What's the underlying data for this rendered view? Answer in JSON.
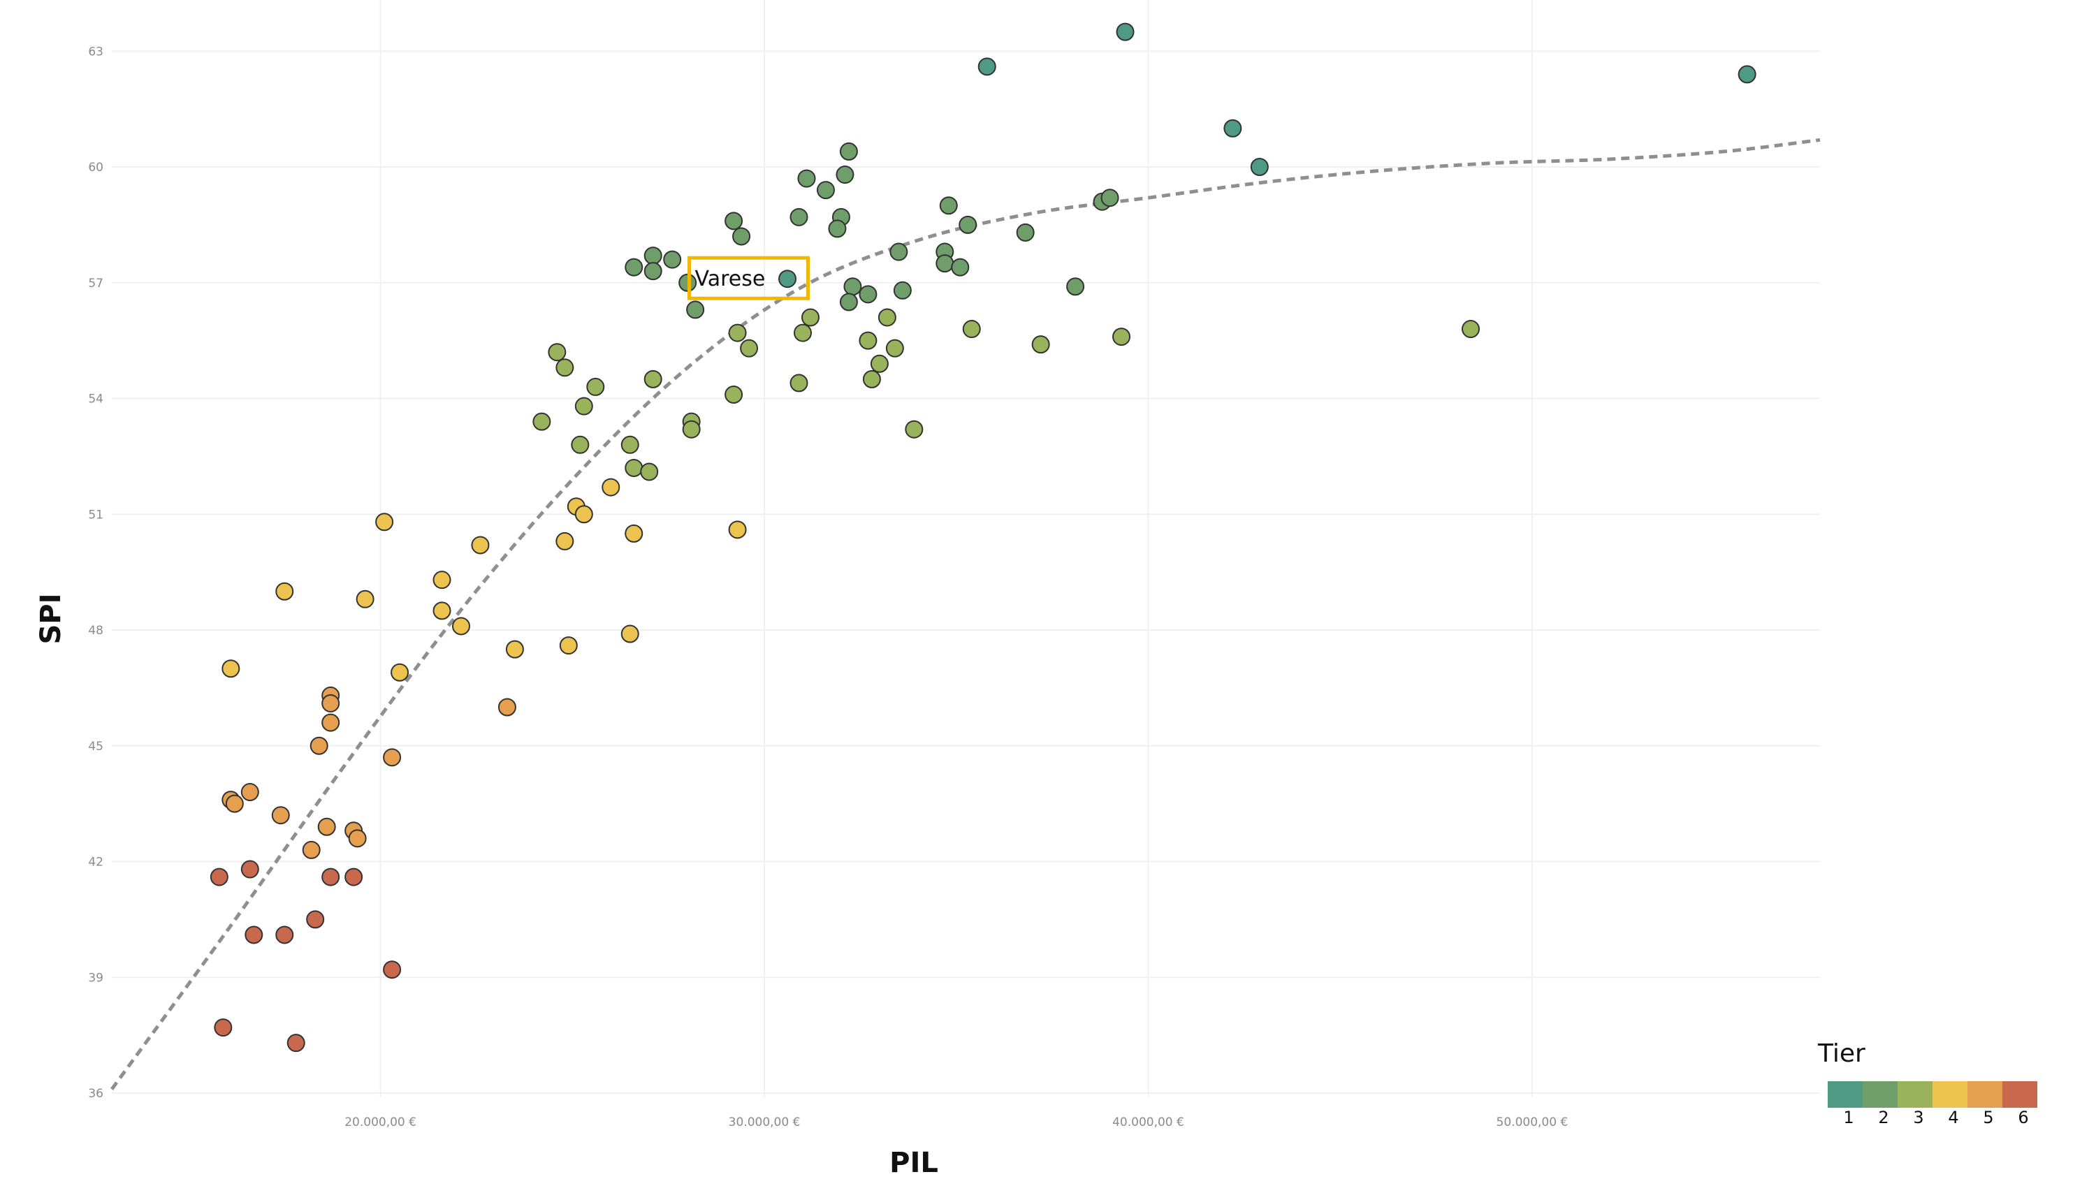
{
  "chart_data": {
    "type": "scatter",
    "title": "",
    "xlabel": "PIL",
    "ylabel": "SPI",
    "xlim": [
      13000,
      57500
    ],
    "ylim": [
      36,
      64
    ],
    "x_ticks": [
      20000,
      30000,
      40000,
      50000
    ],
    "x_tick_labels": [
      "20.000,00 €",
      "30.000,00 €",
      "40.000,00 €",
      "50.000,00 €"
    ],
    "y_ticks": [
      36,
      39,
      42,
      45,
      48,
      51,
      54,
      57,
      60,
      63
    ],
    "y_tick_labels": [
      "36",
      "39",
      "42",
      "45",
      "48",
      "51",
      "54",
      "57",
      "60",
      "63"
    ],
    "grid": true,
    "legend": {
      "title": "Tier",
      "placement": "bottom-right",
      "labels": [
        "1",
        "2",
        "3",
        "4",
        "5",
        "6"
      ],
      "colors": [
        "#4e9a82",
        "#6f9e6b",
        "#98b35c",
        "#ecc34f",
        "#e59f4e",
        "#c8694d"
      ]
    },
    "annotation": {
      "label": "Varese",
      "x": 30700,
      "y": 57.1
    },
    "trend_line": {
      "style": "dashed",
      "color": "#8f8f8f",
      "x": [
        13000,
        16000,
        19000,
        22000,
        25000,
        28000,
        31000,
        34000,
        37000,
        40000,
        43000,
        46000,
        49000,
        52000,
        55000,
        57500
      ],
      "y": [
        36.1,
        40.2,
        44.4,
        48.4,
        51.9,
        54.8,
        56.9,
        58.1,
        58.8,
        59.2,
        59.6,
        59.9,
        60.1,
        60.2,
        60.4,
        60.7
      ]
    },
    "series": [
      {
        "tier": 1,
        "color": "#4e9a82",
        "points": [
          [
            39400,
            63.5
          ],
          [
            35800,
            62.6
          ],
          [
            55600,
            62.4
          ],
          [
            42200,
            61.0
          ],
          [
            42900,
            60.0
          ],
          [
            30600,
            57.1
          ]
        ]
      },
      {
        "tier": 2,
        "color": "#6f9e6b",
        "points": [
          [
            32200,
            60.4
          ],
          [
            32100,
            59.8
          ],
          [
            31100,
            59.7
          ],
          [
            31600,
            59.4
          ],
          [
            29200,
            58.6
          ],
          [
            30900,
            58.7
          ],
          [
            32000,
            58.7
          ],
          [
            31900,
            58.4
          ],
          [
            29400,
            58.2
          ],
          [
            34800,
            59.0
          ],
          [
            35300,
            58.5
          ],
          [
            36800,
            58.3
          ],
          [
            38800,
            59.1
          ],
          [
            39000,
            59.2
          ],
          [
            26600,
            57.4
          ],
          [
            27100,
            57.7
          ],
          [
            27100,
            57.3
          ],
          [
            27600,
            57.6
          ],
          [
            28000,
            57.0
          ],
          [
            28200,
            56.3
          ],
          [
            32300,
            56.9
          ],
          [
            32200,
            56.5
          ],
          [
            32700,
            56.7
          ],
          [
            33500,
            57.8
          ],
          [
            33600,
            56.8
          ],
          [
            34700,
            57.8
          ],
          [
            34700,
            57.5
          ],
          [
            35100,
            57.4
          ],
          [
            38100,
            56.9
          ]
        ]
      },
      {
        "tier": 3,
        "color": "#98b35c",
        "points": [
          [
            31200,
            56.1
          ],
          [
            31000,
            55.7
          ],
          [
            29300,
            55.7
          ],
          [
            29600,
            55.3
          ],
          [
            32700,
            55.5
          ],
          [
            33200,
            56.1
          ],
          [
            33000,
            54.9
          ],
          [
            32800,
            54.5
          ],
          [
            33400,
            55.3
          ],
          [
            35400,
            55.8
          ],
          [
            37200,
            55.4
          ],
          [
            39300,
            55.6
          ],
          [
            48400,
            55.8
          ],
          [
            24600,
            55.2
          ],
          [
            24800,
            54.8
          ],
          [
            25600,
            54.3
          ],
          [
            27100,
            54.5
          ],
          [
            25300,
            53.8
          ],
          [
            24200,
            53.4
          ],
          [
            28100,
            53.4
          ],
          [
            28100,
            53.2
          ],
          [
            29200,
            54.1
          ],
          [
            30900,
            54.4
          ],
          [
            33900,
            53.2
          ],
          [
            25200,
            52.8
          ],
          [
            26500,
            52.8
          ],
          [
            26600,
            52.2
          ],
          [
            27000,
            52.1
          ]
        ]
      },
      {
        "tier": 4,
        "color": "#ecc34f",
        "points": [
          [
            26000,
            51.7
          ],
          [
            25100,
            51.2
          ],
          [
            25300,
            51.0
          ],
          [
            26600,
            50.5
          ],
          [
            29300,
            50.6
          ],
          [
            24800,
            50.3
          ],
          [
            20100,
            50.8
          ],
          [
            22600,
            50.2
          ],
          [
            21600,
            49.3
          ],
          [
            17500,
            49.0
          ],
          [
            19600,
            48.8
          ],
          [
            21600,
            48.5
          ],
          [
            22100,
            48.1
          ],
          [
            26500,
            47.9
          ],
          [
            23500,
            47.5
          ],
          [
            24900,
            47.6
          ],
          [
            20500,
            46.9
          ],
          [
            16100,
            47.0
          ]
        ]
      },
      {
        "tier": 5,
        "color": "#e59f4e",
        "points": [
          [
            23300,
            46.0
          ],
          [
            18700,
            46.3
          ],
          [
            18700,
            46.1
          ],
          [
            18700,
            45.6
          ],
          [
            18400,
            45.0
          ],
          [
            20300,
            44.7
          ],
          [
            16100,
            43.6
          ],
          [
            16200,
            43.5
          ],
          [
            16600,
            43.8
          ],
          [
            17400,
            43.2
          ],
          [
            18600,
            42.9
          ],
          [
            19300,
            42.8
          ],
          [
            19400,
            42.6
          ],
          [
            18200,
            42.3
          ]
        ]
      },
      {
        "tier": 6,
        "color": "#c8694d",
        "points": [
          [
            16600,
            41.8
          ],
          [
            15800,
            41.6
          ],
          [
            18700,
            41.6
          ],
          [
            19300,
            41.6
          ],
          [
            18300,
            40.5
          ],
          [
            16700,
            40.1
          ],
          [
            17500,
            40.1
          ],
          [
            20300,
            39.2
          ],
          [
            15900,
            37.7
          ],
          [
            17800,
            37.3
          ]
        ]
      }
    ]
  }
}
